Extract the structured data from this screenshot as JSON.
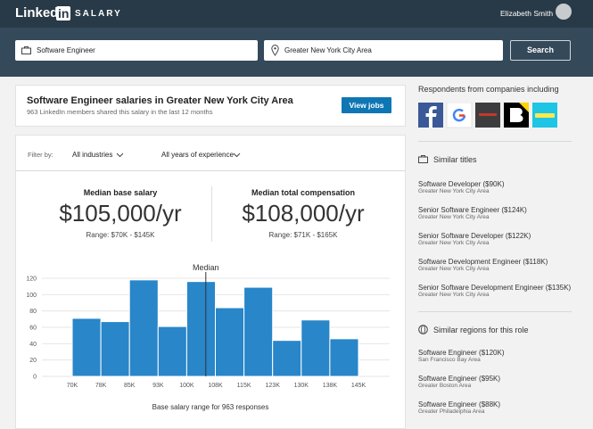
{
  "header": {
    "logo_word": "Linked",
    "logo_badge": "in",
    "product": "SALARY",
    "user_name": "Elizabeth Smith"
  },
  "search": {
    "title_query": "Software Engineer",
    "location_query": "Greater New York City Area",
    "button": "Search"
  },
  "summary": {
    "title": "Software Engineer salaries in Greater New York City Area",
    "subtitle": "963 LinkedIn members shared this salary in the last 12 months",
    "button": "View jobs"
  },
  "filters": {
    "label": "Filter by:",
    "industry": "All industries",
    "experience": "All years of experience"
  },
  "stats": [
    {
      "label": "Median base salary",
      "value": "$105,000/yr",
      "range": "Range: $70K - $145K"
    },
    {
      "label": "Median total compensation",
      "value": "$108,000/yr",
      "range": "Range: $71K - $165K"
    }
  ],
  "chart_data": {
    "type": "histogram",
    "bins": [
      70,
      77.5,
      85,
      92.5,
      100,
      107.5,
      115,
      122.5,
      130,
      137.5,
      145
    ],
    "values": [
      71,
      67,
      118,
      61,
      116,
      84,
      109,
      44,
      69,
      46
    ],
    "color": "#2886c9",
    "xlim": [
      70,
      145
    ],
    "xticks": [
      {
        "value": 70,
        "label": "70K"
      },
      {
        "value": 77.5,
        "label": "78K"
      },
      {
        "value": 85,
        "label": "85K"
      },
      {
        "value": 92.5,
        "label": "93K"
      },
      {
        "value": 100,
        "label": "100K"
      },
      {
        "value": 107.5,
        "label": "108K"
      },
      {
        "value": 115,
        "label": "115K"
      },
      {
        "value": 122.5,
        "label": "123K"
      },
      {
        "value": 130,
        "label": "130K"
      },
      {
        "value": 137.5,
        "label": "138K"
      },
      {
        "value": 145,
        "label": "145K"
      }
    ],
    "ylim": [
      0,
      120
    ],
    "yticks": [
      0,
      20,
      40,
      60,
      80,
      100,
      120
    ],
    "grid": true,
    "median": 105,
    "median_label": "Median",
    "xlabel": "Base salary range for 963 responses"
  },
  "sidebar": {
    "companies_title": "Respondents from companies including",
    "similar_titles": {
      "heading": "Similar titles",
      "items": [
        {
          "title": "Software Developer ($90K)",
          "location": "Greater New York City Area"
        },
        {
          "title": "Senior Software Engineer ($124K)",
          "location": "Greater New York City Area"
        },
        {
          "title": "Senior Software Developer ($122K)",
          "location": "Greater New York City Area"
        },
        {
          "title": "Software Development Engineer ($118K)",
          "location": "Greater New York City Area"
        },
        {
          "title": "Senior Software Development Engineer ($135K)",
          "location": "Greater New York City Area"
        }
      ]
    },
    "similar_regions": {
      "heading": "Similar regions for this role",
      "items": [
        {
          "title": "Software Engineer ($120K)",
          "location": "San Francisco Bay Area"
        },
        {
          "title": "Software Engineer ($95K)",
          "location": "Greater Boston Area"
        },
        {
          "title": "Software Engineer ($88K)",
          "location": "Greater Philadelphia Area"
        }
      ]
    }
  }
}
